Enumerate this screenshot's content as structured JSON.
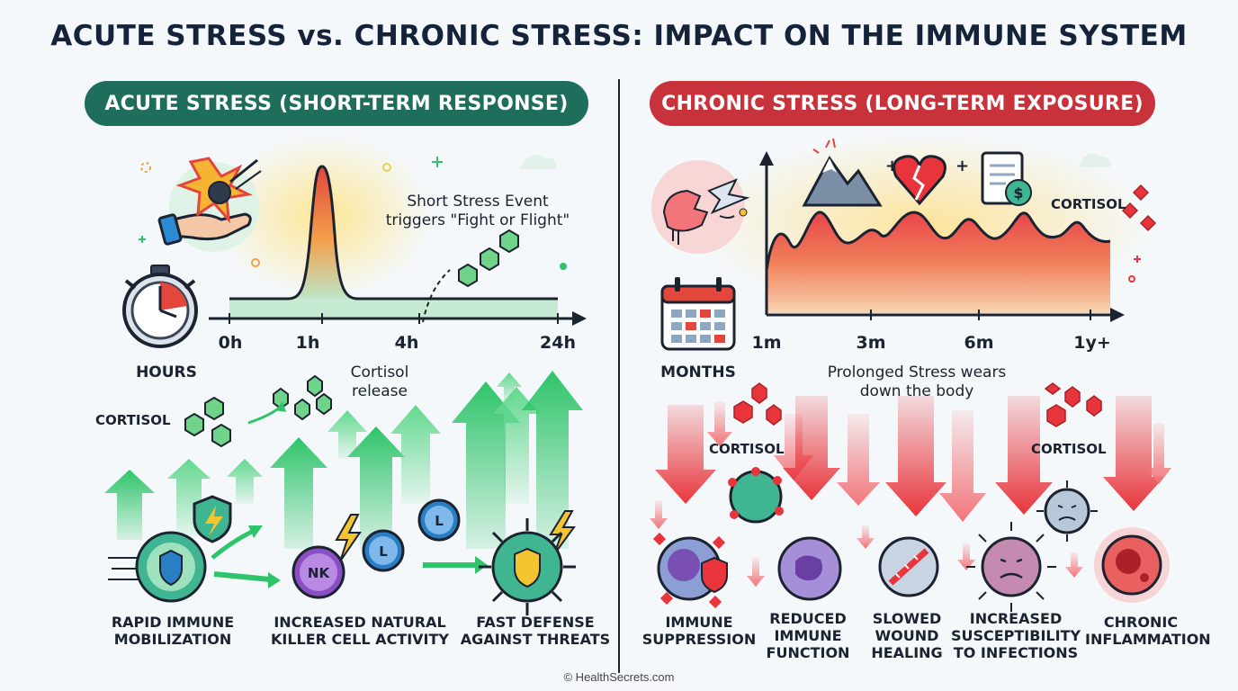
{
  "title": "ACUTE STRESS vs. CHRONIC STRESS: IMPACT ON THE IMMUNE SYSTEM",
  "acute": {
    "header": "ACUTE STRESS (SHORT-TERM RESPONSE)",
    "event_note_line1": "Short Stress Event",
    "event_note_line2": "triggers \"Fight or Flight\"",
    "time_unit": "HOURS",
    "ticks": [
      "0h",
      "1h",
      "4h",
      "24h"
    ],
    "cortisol_release_line1": "Cortisol",
    "cortisol_release_line2": "release",
    "cortisol_label": "CORTISOL",
    "nk_label": "NK",
    "lymph_label": "L",
    "effects": [
      {
        "line1": "RAPID IMMUNE",
        "line2": "MOBILIZATION"
      },
      {
        "line1": "INCREASED NATURAL",
        "line2": "KILLER CELL ACTIVITY"
      },
      {
        "line1": "FAST DEFENSE",
        "line2": "AGAINST THREATS"
      }
    ]
  },
  "chronic": {
    "header": "CHRONIC STRESS (LONG-TERM EXPOSURE)",
    "cortisol_chart_label": "CORTISOL",
    "time_unit": "MONTHS",
    "ticks": [
      "1m",
      "3m",
      "6m",
      "1y+"
    ],
    "wear_note_line1": "Prolonged Stress wears",
    "wear_note_line2": "down the body",
    "cortisol_label_1": "CORTISOL",
    "cortisol_label_2": "CORTISOL",
    "effects": [
      {
        "line1": "IMMUNE",
        "line2": "SUPPRESSION",
        "line3": ""
      },
      {
        "line1": "REDUCED",
        "line2": "IMMUNE",
        "line3": "FUNCTION"
      },
      {
        "line1": "SLOWED",
        "line2": "WOUND",
        "line3": "HEALING"
      },
      {
        "line1": "INCREASED",
        "line2": "SUSCEPTIBILITY",
        "line3": "TO INFECTIONS"
      },
      {
        "line1": "CHRONIC",
        "line2": "INFLAMMATION",
        "line3": ""
      }
    ]
  },
  "footer": "© HealthSecrets.com",
  "colors": {
    "acute_green": "#1f6e5c",
    "chronic_red": "#c8323a",
    "arrow_green": "#2ec46a",
    "arrow_red": "#e8353b",
    "background": "#f4f8fa"
  },
  "icons": [
    "stopwatch-icon",
    "hand-meteor-icon",
    "calendar-icon",
    "mountain-icon",
    "broken-heart-icon",
    "bill-icon",
    "shield-icon",
    "lightning-icon"
  ]
}
